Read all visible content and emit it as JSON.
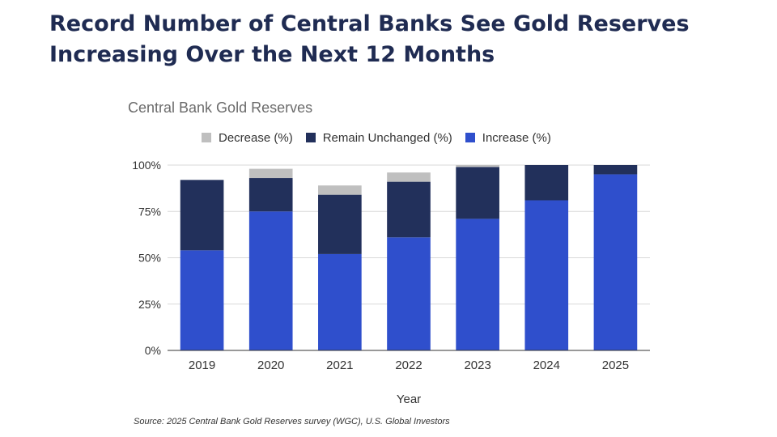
{
  "headline": {
    "line1": "Record Number of Central Banks See Gold Reserves",
    "line2": "Increasing Over the Next 12 Months"
  },
  "source": "Source: 2025 Central Bank Gold Reserves survey (WGC), U.S. Global Investors",
  "chart_data": {
    "type": "bar",
    "stacked": true,
    "title": "Central Bank Gold Reserves",
    "xlabel": "Year",
    "ylabel": "",
    "categories": [
      "2019",
      "2020",
      "2021",
      "2022",
      "2023",
      "2024",
      "2025"
    ],
    "ylim": [
      0,
      100
    ],
    "yticks": [
      "0%",
      "25%",
      "50%",
      "75%",
      "100%"
    ],
    "legend_position": "top",
    "grid": true,
    "series": [
      {
        "name": "Increase (%)",
        "color": "#2f4fcc",
        "values": [
          54,
          75,
          52,
          61,
          71,
          81,
          95
        ]
      },
      {
        "name": "Remain Unchanged (%)",
        "color": "#22305b",
        "values": [
          38,
          18,
          32,
          30,
          28,
          19,
          5
        ]
      },
      {
        "name": "Decrease (%)",
        "color": "#bfbfbf",
        "values": [
          0,
          5,
          5,
          5,
          1,
          0,
          0
        ]
      }
    ]
  }
}
